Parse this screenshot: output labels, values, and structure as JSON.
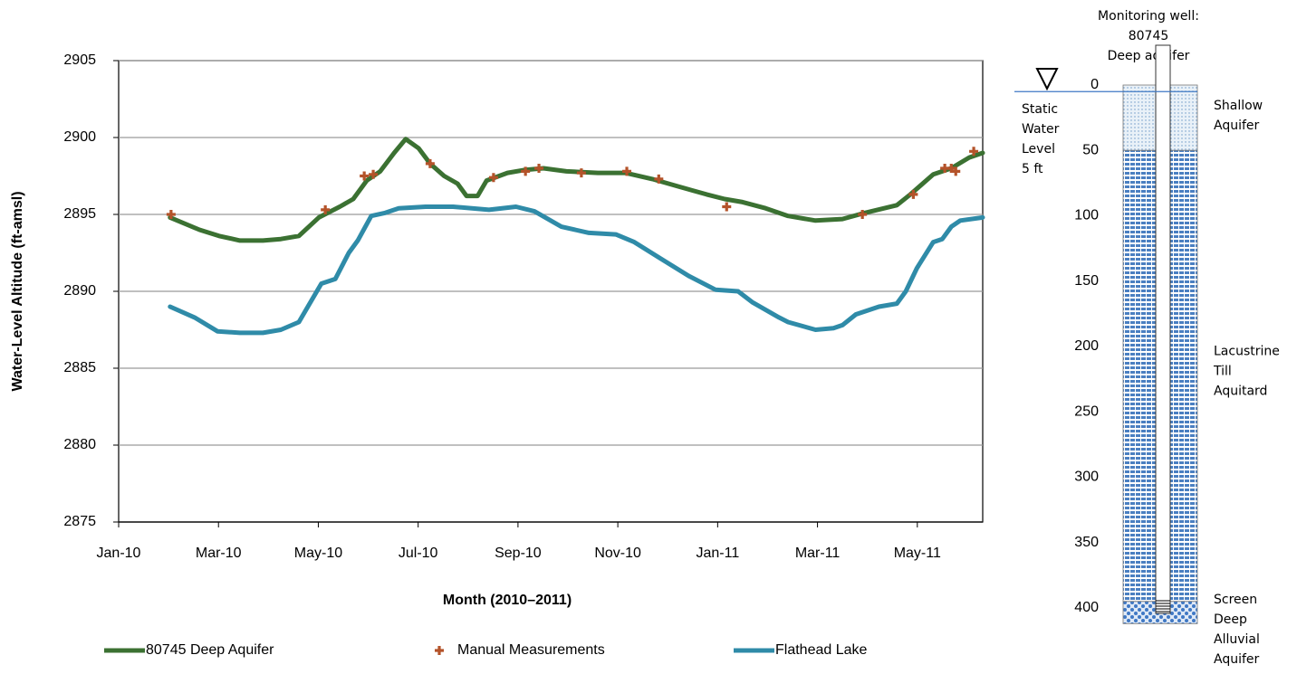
{
  "chart_data": {
    "type": "line",
    "x_label": "Month (2010–2011)",
    "y_label": "Water-Level Altitude (ft-amsl)",
    "xlim": [
      0,
      17.31
    ],
    "xticks": [
      {
        "value": 0,
        "label": "Jan-10"
      },
      {
        "value": 2,
        "label": "Mar-10"
      },
      {
        "value": 4,
        "label": "May-10"
      },
      {
        "value": 6,
        "label": "Jul-10"
      },
      {
        "value": 8,
        "label": "Sep-10"
      },
      {
        "value": 10,
        "label": "Nov-10"
      },
      {
        "value": 12,
        "label": "Jan-11"
      },
      {
        "value": 14,
        "label": "Mar-11"
      },
      {
        "value": 16,
        "label": "May-11"
      }
    ],
    "ylim": [
      2875,
      2905
    ],
    "yticks": [
      2875,
      2880,
      2885,
      2890,
      2895,
      2900,
      2905
    ],
    "grid": true,
    "series": [
      {
        "name": "80745 Deep Aquifer",
        "style": "line",
        "color": "#3b7132",
        "x": [
          1.03,
          1.62,
          2.01,
          2.43,
          2.89,
          3.25,
          3.61,
          4.01,
          4.43,
          4.7,
          4.97,
          5.24,
          5.52,
          5.75,
          6.01,
          6.24,
          6.52,
          6.79,
          6.97,
          7.19,
          7.37,
          7.79,
          8.15,
          8.51,
          8.97,
          9.6,
          10.15,
          10.69,
          11.23,
          11.78,
          12.14,
          12.5,
          12.96,
          13.41,
          13.96,
          14.5,
          14.95,
          15.59,
          15.86,
          16.32,
          16.68,
          17.04,
          17.31
        ],
        "values": [
          2894.8,
          2894.0,
          2893.6,
          2893.3,
          2893.3,
          2893.4,
          2893.6,
          2894.8,
          2895.5,
          2896.0,
          2897.2,
          2897.8,
          2899.0,
          2899.9,
          2899.3,
          2898.3,
          2897.5,
          2897.0,
          2896.2,
          2896.2,
          2897.2,
          2897.7,
          2897.9,
          2898.0,
          2897.8,
          2897.7,
          2897.7,
          2897.3,
          2896.8,
          2896.3,
          2896.0,
          2895.8,
          2895.4,
          2894.9,
          2894.6,
          2894.7,
          2895.1,
          2895.6,
          2896.3,
          2897.6,
          2898.0,
          2898.7,
          2899.0
        ]
      },
      {
        "name": "Manual Measurements",
        "style": "marker",
        "color": "#b4532a",
        "x": [
          1.05,
          4.14,
          4.92,
          5.1,
          6.24,
          7.51,
          8.15,
          8.42,
          9.27,
          10.18,
          10.82,
          12.18,
          14.9,
          15.92,
          16.55,
          16.68,
          16.77,
          17.13
        ],
        "values": [
          2895.0,
          2895.3,
          2897.5,
          2897.6,
          2898.3,
          2897.4,
          2897.8,
          2898.0,
          2897.7,
          2897.8,
          2897.3,
          2895.5,
          2895.0,
          2896.3,
          2898.0,
          2898.0,
          2897.8,
          2899.1
        ]
      },
      {
        "name": "Flathead Lake",
        "style": "line",
        "color": "#2f8ba8",
        "x": [
          1.03,
          1.52,
          1.98,
          2.43,
          2.89,
          3.25,
          3.61,
          3.79,
          4.06,
          4.34,
          4.61,
          4.79,
          5.06,
          5.34,
          5.61,
          6.15,
          6.7,
          7.42,
          7.96,
          8.33,
          8.87,
          9.42,
          9.96,
          10.33,
          10.87,
          11.42,
          11.96,
          12.41,
          12.69,
          13.23,
          13.41,
          13.96,
          14.32,
          14.5,
          14.77,
          15.23,
          15.59,
          15.77,
          15.99,
          16.32,
          16.5,
          16.68,
          16.86,
          17.31
        ],
        "values": [
          2889.0,
          2888.3,
          2887.4,
          2887.3,
          2887.3,
          2887.5,
          2888.0,
          2889.0,
          2890.5,
          2890.8,
          2892.5,
          2893.3,
          2894.9,
          2895.1,
          2895.4,
          2895.5,
          2895.5,
          2895.3,
          2895.5,
          2895.2,
          2894.2,
          2893.8,
          2893.7,
          2893.2,
          2892.1,
          2891.0,
          2890.1,
          2890.0,
          2889.3,
          2888.3,
          2888.0,
          2887.5,
          2887.6,
          2887.8,
          2888.5,
          2889.0,
          2889.2,
          2890.0,
          2891.5,
          2893.2,
          2893.4,
          2894.2,
          2894.6,
          2894.8
        ]
      }
    ]
  },
  "well_diagram": {
    "title": [
      "Monitoring well:",
      "80745",
      "Deep aquifer"
    ],
    "depth_lim": [
      0,
      412
    ],
    "depth_ticks": [
      0,
      50,
      100,
      150,
      200,
      250,
      300,
      350,
      400
    ],
    "water_level": {
      "value": 5,
      "label": [
        "Static",
        "Water",
        "Level",
        "5 ft"
      ]
    },
    "layers": [
      {
        "top": 0,
        "bottom": 50,
        "label": [
          "Shallow",
          "Aquifer"
        ]
      },
      {
        "top": 50,
        "bottom": 395,
        "label": [
          "Lacustrine",
          "Till",
          "Aquitard"
        ]
      },
      {
        "top": 395,
        "bottom": 412,
        "label": [
          "Screen",
          "Deep",
          "Alluvial",
          "Aquifer"
        ]
      }
    ]
  }
}
